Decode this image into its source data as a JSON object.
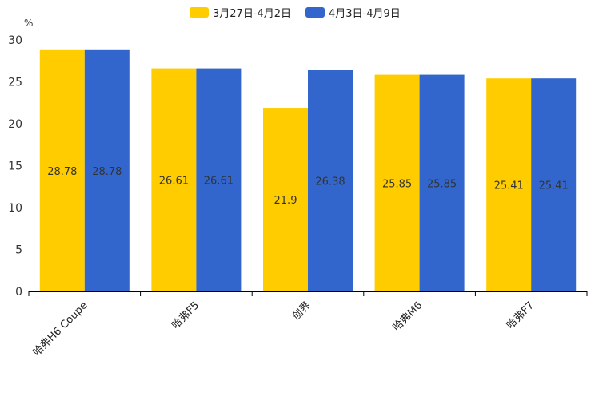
{
  "chart_data": {
    "type": "bar",
    "title": "",
    "ylabel": "%",
    "xlabel": "",
    "ylim": [
      0,
      30
    ],
    "yticks": [
      0,
      5,
      10,
      15,
      20,
      25,
      30
    ],
    "grid": false,
    "legend_position": "top-center",
    "categories": [
      "哈弗H6 Coupe",
      "哈弗F5",
      "创界",
      "哈弗M6",
      "哈弗F7"
    ],
    "series": [
      {
        "name": "3月27日-4月2日",
        "color": "#ffcc00",
        "values": [
          28.78,
          26.61,
          21.9,
          25.85,
          25.41
        ]
      },
      {
        "name": "4月3日-4月9日",
        "color": "#3366cc",
        "values": [
          28.78,
          26.61,
          26.38,
          25.85,
          25.41
        ]
      }
    ]
  }
}
